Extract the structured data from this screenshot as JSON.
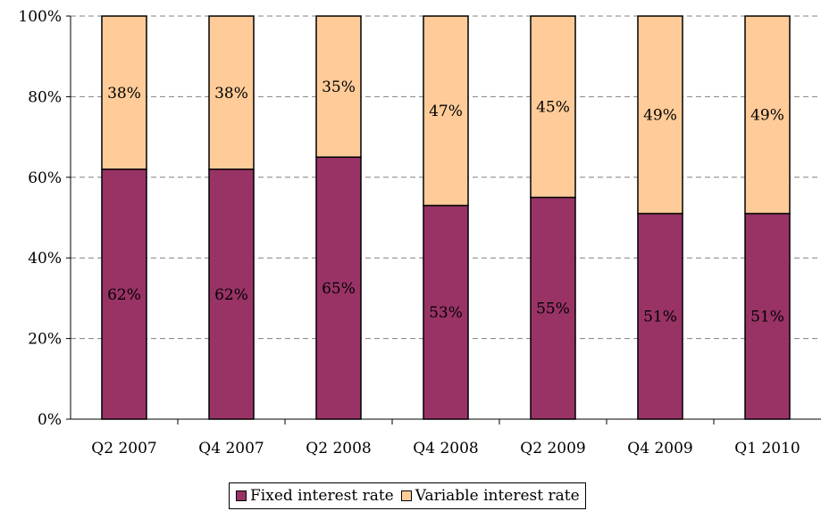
{
  "chart_data": {
    "type": "bar",
    "stacked": true,
    "categories": [
      "Q2 2007",
      "Q4 2007",
      "Q2 2008",
      "Q4 2008",
      "Q2 2009",
      "Q4 2009",
      "Q1 2010"
    ],
    "series": [
      {
        "name": "Fixed interest rate",
        "color": "#993366",
        "values": [
          62,
          62,
          65,
          53,
          55,
          51,
          51
        ],
        "labels": [
          "62%",
          "62%",
          "65%",
          "53%",
          "55%",
          "51%",
          "51%"
        ]
      },
      {
        "name": "Variable interest rate",
        "color": "#FFCC99",
        "values": [
          38,
          38,
          35,
          47,
          45,
          49,
          49
        ],
        "labels": [
          "38%",
          "38%",
          "35%",
          "47%",
          "45%",
          "49%",
          "49%"
        ]
      }
    ],
    "ylim": [
      0,
      100
    ],
    "yticks": [
      "0%",
      "20%",
      "40%",
      "60%",
      "80%",
      "100%"
    ],
    "grid": true,
    "legend_position": "bottom"
  }
}
